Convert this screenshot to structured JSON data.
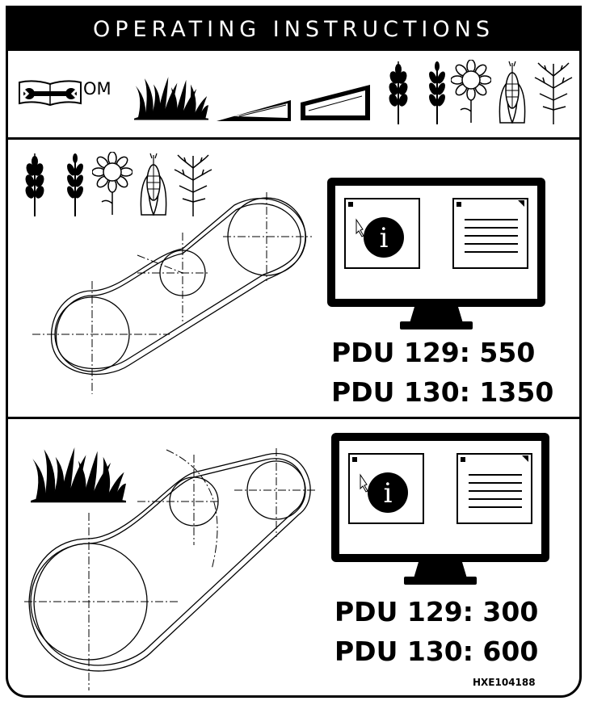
{
  "title": "OPERATING INSTRUCTIONS",
  "om_label": "OM",
  "sections": [
    {
      "pdu_lines": [
        "PDU 129: 550",
        "PDU 130: 1350"
      ]
    },
    {
      "pdu_lines": [
        "PDU 129: 300",
        "PDU 130: 600"
      ]
    }
  ],
  "part_code": "HXE104188",
  "icons": {
    "header": [
      "operator-manual-wrench-icon",
      "grass-icon",
      "small-wedge-icon",
      "large-wedge-icon",
      "wheat-icon",
      "barley-icon",
      "sunflower-icon",
      "corn-icon",
      "plant-icon"
    ],
    "section1": [
      "wheat-icon",
      "barley-icon",
      "sunflower-icon",
      "corn-icon",
      "plant-icon",
      "belt-diagram-icon",
      "monitor-icon"
    ],
    "section2": [
      "grass-icon",
      "belt-diagram-icon",
      "monitor-icon"
    ]
  }
}
